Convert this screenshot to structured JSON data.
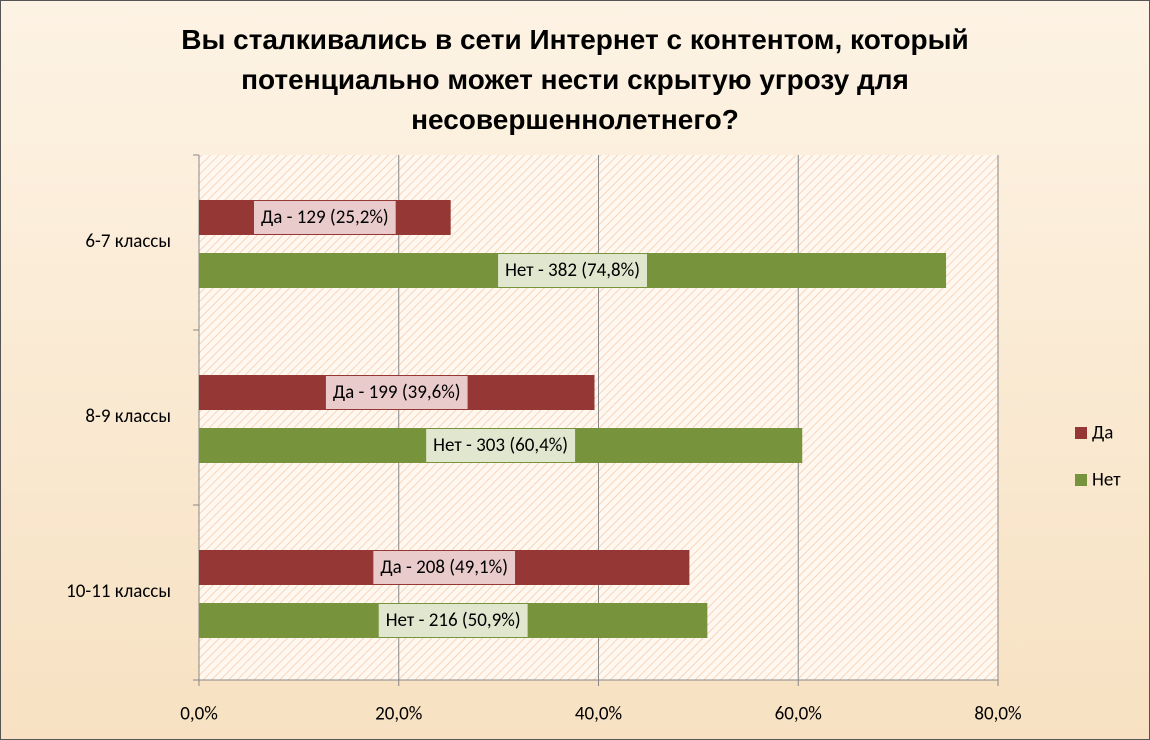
{
  "chart_data": {
    "type": "hbar",
    "title": "Вы сталкивались в сети Интернет с контентом, который потенциально может нести скрытую угрозу для несовершеннолетнего?",
    "categories": [
      "6-7 классы",
      "8-9 классы",
      "10-11 классы"
    ],
    "series": [
      {
        "name": "Да",
        "color": "#953735",
        "values": [
          25.2,
          39.6,
          49.1
        ],
        "value_labels": [
          "Да - 129 (25,2%)",
          "Да - 199 (39,6%)",
          "Да - 208 (49,1%)"
        ]
      },
      {
        "name": "Нет",
        "color": "#77933c",
        "values": [
          74.8,
          60.4,
          50.9
        ],
        "value_labels": [
          "Нет - 382 (74,8%)",
          "Нет - 303 (60,4%)",
          "Нет - 216 (50,9%)"
        ]
      }
    ],
    "xlim": [
      0,
      80
    ],
    "xticks": [
      {
        "value": 0,
        "label": "0,0%"
      },
      {
        "value": 20,
        "label": "20,0%"
      },
      {
        "value": 40,
        "label": "40,0%"
      },
      {
        "value": 60,
        "label": "60,0%"
      },
      {
        "value": 80,
        "label": "80,0%"
      }
    ],
    "grid": true,
    "legend": "right"
  }
}
